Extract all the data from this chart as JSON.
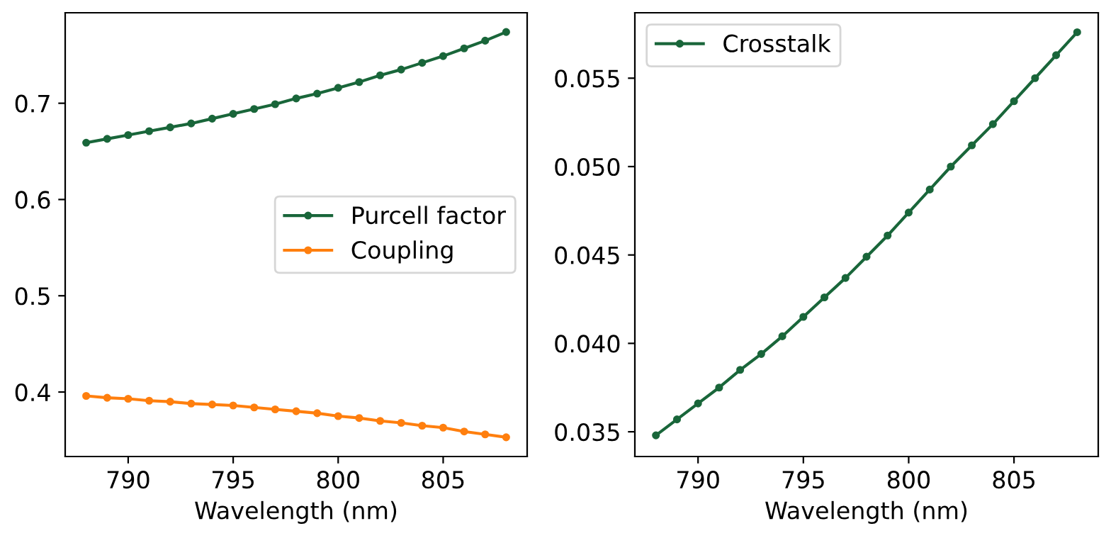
{
  "chart_data": [
    {
      "type": "line",
      "xlabel": "Wavelength (nm)",
      "x": [
        788,
        789,
        790,
        791,
        792,
        793,
        794,
        795,
        796,
        797,
        798,
        799,
        800,
        801,
        802,
        803,
        804,
        805,
        806,
        807,
        808
      ],
      "series": [
        {
          "name": "Purcell factor",
          "color": "#19663a",
          "values": [
            0.659,
            0.663,
            0.667,
            0.671,
            0.675,
            0.679,
            0.684,
            0.689,
            0.694,
            0.699,
            0.705,
            0.71,
            0.716,
            0.722,
            0.729,
            0.735,
            0.742,
            0.749,
            0.757,
            0.765,
            0.774
          ]
        },
        {
          "name": "Coupling",
          "color": "#ff7f0e",
          "values": [
            0.396,
            0.394,
            0.393,
            0.391,
            0.39,
            0.388,
            0.387,
            0.386,
            0.384,
            0.382,
            0.38,
            0.378,
            0.375,
            0.373,
            0.37,
            0.368,
            0.365,
            0.363,
            0.359,
            0.356,
            0.353
          ]
        }
      ],
      "xlim": [
        787.0,
        809.0
      ],
      "xticks": [
        790,
        795,
        800,
        805
      ],
      "ylim": [
        0.333,
        0.794
      ],
      "yticks": [
        0.4,
        0.5,
        0.6,
        0.7
      ],
      "marker": "circle",
      "legend": "center right",
      "grid": false
    },
    {
      "type": "line",
      "xlabel": "Wavelength (nm)",
      "x": [
        788,
        789,
        790,
        791,
        792,
        793,
        794,
        795,
        796,
        797,
        798,
        799,
        800,
        801,
        802,
        803,
        804,
        805,
        806,
        807,
        808
      ],
      "series": [
        {
          "name": "Crosstalk",
          "color": "#19663a",
          "values": [
            0.0348,
            0.0357,
            0.0366,
            0.0375,
            0.0385,
            0.0394,
            0.0404,
            0.0415,
            0.0426,
            0.0437,
            0.0449,
            0.0461,
            0.0474,
            0.0487,
            0.05,
            0.0512,
            0.0524,
            0.0537,
            0.055,
            0.0563,
            0.0576
          ]
        }
      ],
      "xlim": [
        787.0,
        809.0
      ],
      "xticks": [
        790,
        795,
        800,
        805
      ],
      "ylim": [
        0.0336,
        0.0587
      ],
      "yticks": [
        0.035,
        {
          "value": 0.04,
          "label": "0.040"
        },
        0.045,
        {
          "value": 0.05,
          "label": "0.050"
        },
        0.055
      ],
      "marker": "circle",
      "legend": "top left",
      "grid": false
    }
  ]
}
